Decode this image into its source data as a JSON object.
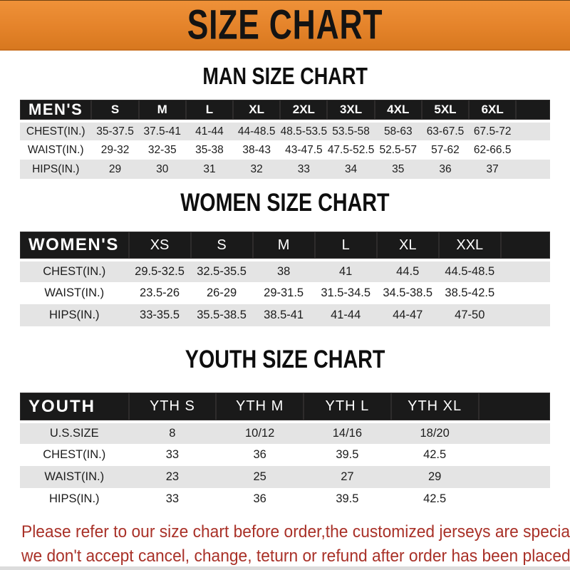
{
  "banner": {
    "title": "SIZE CHART"
  },
  "colors": {
    "banner_bg": "#E6862B",
    "header_bar": "#1A1A1A",
    "row_stripe": "#E4E4E4",
    "footer_text": "#A93128"
  },
  "sections": [
    {
      "id": "men",
      "heading": "MAN SIZE CHART",
      "header_label": "MEN'S",
      "columns": [
        "S",
        "M",
        "L",
        "XL",
        "2XL",
        "3XL",
        "4XL",
        "5XL",
        "6XL"
      ],
      "rows": [
        {
          "label": "CHEST(IN.)",
          "values": [
            "35-37.5",
            "37.5-41",
            "41-44",
            "44-48.5",
            "48.5-53.5",
            "53.5-58",
            "58-63",
            "63-67.5",
            "67.5-72"
          ]
        },
        {
          "label": "WAIST(IN.)",
          "values": [
            "29-32",
            "32-35",
            "35-38",
            "38-43",
            "43-47.5",
            "47.5-52.5",
            "52.5-57",
            "57-62",
            "62-66.5"
          ]
        },
        {
          "label": "HIPS(IN.)",
          "values": [
            "29",
            "30",
            "31",
            "32",
            "33",
            "34",
            "35",
            "36",
            "37"
          ]
        }
      ]
    },
    {
      "id": "women",
      "heading": "WOMEN SIZE CHART",
      "header_label": "WOMEN'S",
      "columns": [
        "XS",
        "S",
        "M",
        "L",
        "XL",
        "XXL"
      ],
      "rows": [
        {
          "label": "CHEST(IN.)",
          "values": [
            "29.5-32.5",
            "32.5-35.5",
            "38",
            "41",
            "44.5",
            "44.5-48.5"
          ]
        },
        {
          "label": "WAIST(IN.)",
          "values": [
            "23.5-26",
            "26-29",
            "29-31.5",
            "31.5-34.5",
            "34.5-38.5",
            "38.5-42.5"
          ]
        },
        {
          "label": "HIPS(IN.)",
          "values": [
            "33-35.5",
            "35.5-38.5",
            "38.5-41",
            "41-44",
            "44-47",
            "47-50"
          ]
        }
      ]
    },
    {
      "id": "youth",
      "heading": "YOUTH SIZE CHART",
      "header_label": "YOUTH",
      "columns": [
        "YTH S",
        "YTH M",
        "YTH L",
        "YTH XL"
      ],
      "rows": [
        {
          "label": "U.S.SIZE",
          "values": [
            "8",
            "10/12",
            "14/16",
            "18/20"
          ]
        },
        {
          "label": "CHEST(IN.)",
          "values": [
            "33",
            "36",
            "39.5",
            "42.5"
          ]
        },
        {
          "label": "WAIST(IN.)",
          "values": [
            "23",
            "25",
            "27",
            "29"
          ]
        },
        {
          "label": "HIPS(IN.)",
          "values": [
            "33",
            "36",
            "39.5",
            "42.5"
          ]
        }
      ]
    }
  ],
  "footer": {
    "line1": "Please refer to our size chart before order,the customized jerseys are special products,",
    "line2": "we don't accept cancel, change, teturn or refund after order has been placed!"
  }
}
